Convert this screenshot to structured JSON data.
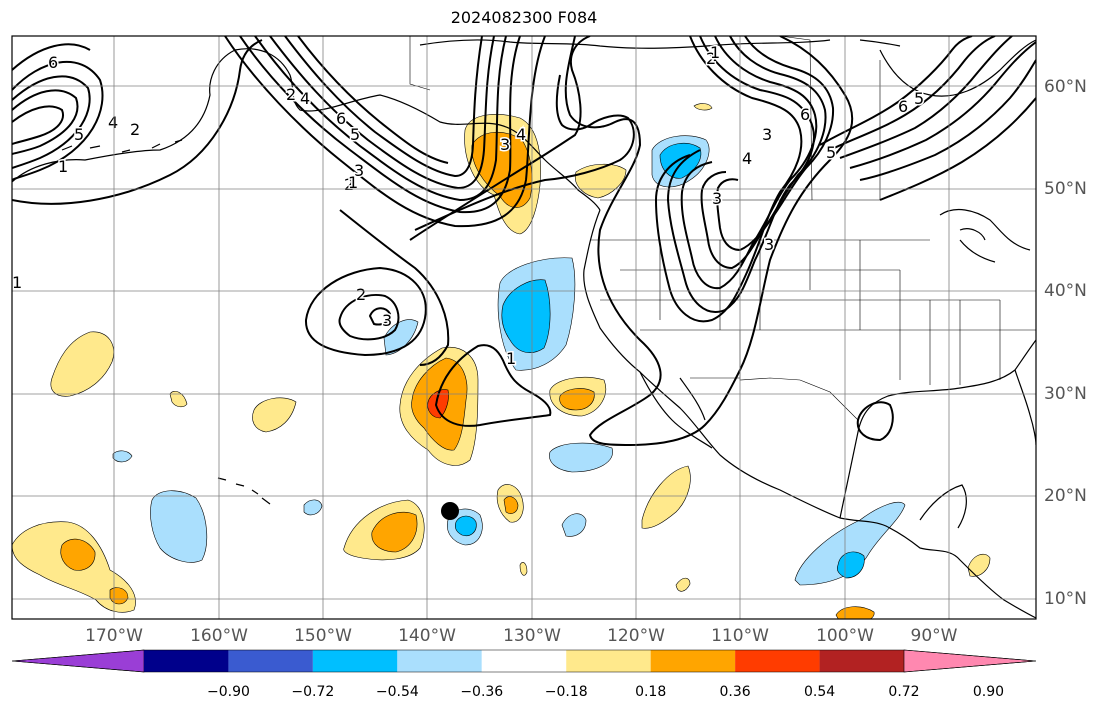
{
  "title": "2024082300 F084",
  "map": {
    "projection": "cylindrical",
    "lon_range": [
      -180,
      -82
    ],
    "lat_range": [
      8,
      64
    ],
    "grid_lines": true,
    "lon_labels": [
      "170°W",
      "160°W",
      "150°W",
      "140°W",
      "130°W",
      "120°W",
      "110°W",
      "100°W",
      "90°W"
    ],
    "lat_labels": [
      "60°N",
      "50°N",
      "40°N",
      "30°N",
      "20°N",
      "10°N"
    ],
    "contour_labels": [
      "6",
      "5",
      "4",
      "2",
      "1",
      "2",
      "3",
      "6",
      "5",
      "4",
      "3",
      "2",
      "1",
      "1",
      "2",
      "3",
      "1",
      "4",
      "3",
      "6",
      "5",
      "6",
      "5",
      "3",
      "4",
      "2",
      "3",
      "1"
    ],
    "storm_marker": "black-dot"
  },
  "colorbar": {
    "ticks": [
      "−0.90",
      "−0.72",
      "−0.54",
      "−0.36",
      "−0.18",
      "0.18",
      "0.36",
      "0.54",
      "0.72",
      "0.90"
    ],
    "colors": [
      "#9a3ed6",
      "#00008b",
      "#3a5bd0",
      "#00bfff",
      "#aadffd",
      "#ffffff",
      "#ffe98c",
      "#ffa500",
      "#ff3c00",
      "#b22222",
      "#ff88b0"
    ]
  }
}
